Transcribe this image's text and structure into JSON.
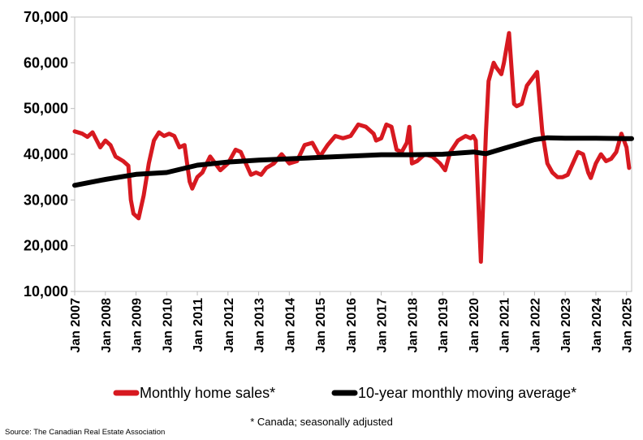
{
  "chart_data": {
    "type": "line",
    "xlabel": "",
    "ylabel": "",
    "ylim": [
      10000,
      70000
    ],
    "yticks": [
      "10,000",
      "20,000",
      "30,000",
      "40,000",
      "50,000",
      "60,000",
      "70,000"
    ],
    "ytick_values": [
      10000,
      20000,
      30000,
      40000,
      50000,
      60000,
      70000
    ],
    "xlim": [
      "2007-01",
      "2025-03"
    ],
    "xticks": [
      "Jan 2007",
      "Jan 2008",
      "Jan 2009",
      "Jan 2010",
      "Jan 2011",
      "Jan 2012",
      "Jan 2013",
      "Jan 2014",
      "Jan 2015",
      "Jan 2016",
      "Jan 2017",
      "Jan 2018",
      "Jan 2019",
      "Jan 2020",
      "Jan 2021",
      "Jan 2022",
      "Jan 2023",
      "Jan 2024",
      "Jan 2025"
    ],
    "grid": "none",
    "legend_position": "bottom",
    "series": [
      {
        "name": "Monthly home sales*",
        "color": "#d71920",
        "points": [
          [
            "2007-01",
            45000
          ],
          [
            "2007-04",
            44500
          ],
          [
            "2007-06",
            43800
          ],
          [
            "2007-08",
            44800
          ],
          [
            "2007-11",
            41500
          ],
          [
            "2008-01",
            43000
          ],
          [
            "2008-03",
            42000
          ],
          [
            "2008-05",
            39500
          ],
          [
            "2008-08",
            38500
          ],
          [
            "2008-10",
            37500
          ],
          [
            "2008-11",
            30000
          ],
          [
            "2008-12",
            27000
          ],
          [
            "2009-02",
            26000
          ],
          [
            "2009-04",
            31000
          ],
          [
            "2009-06",
            38000
          ],
          [
            "2009-08",
            43000
          ],
          [
            "2009-10",
            44800
          ],
          [
            "2009-12",
            44000
          ],
          [
            "2010-02",
            44500
          ],
          [
            "2010-04",
            44000
          ],
          [
            "2010-06",
            41500
          ],
          [
            "2010-08",
            42000
          ],
          [
            "2010-10",
            34000
          ],
          [
            "2010-11",
            32500
          ],
          [
            "2011-01",
            35000
          ],
          [
            "2011-03",
            36000
          ],
          [
            "2011-06",
            39500
          ],
          [
            "2011-08",
            38000
          ],
          [
            "2011-10",
            36500
          ],
          [
            "2012-01",
            38000
          ],
          [
            "2012-04",
            41000
          ],
          [
            "2012-06",
            40500
          ],
          [
            "2012-08",
            38000
          ],
          [
            "2012-10",
            35500
          ],
          [
            "2012-12",
            36000
          ],
          [
            "2013-02",
            35500
          ],
          [
            "2013-04",
            37000
          ],
          [
            "2013-07",
            38000
          ],
          [
            "2013-10",
            40000
          ],
          [
            "2014-01",
            38000
          ],
          [
            "2014-04",
            38500
          ],
          [
            "2014-07",
            42000
          ],
          [
            "2014-10",
            42500
          ],
          [
            "2015-01",
            39500
          ],
          [
            "2015-04",
            42000
          ],
          [
            "2015-07",
            44000
          ],
          [
            "2015-10",
            43500
          ],
          [
            "2016-01",
            44000
          ],
          [
            "2016-04",
            46500
          ],
          [
            "2016-07",
            46000
          ],
          [
            "2016-10",
            44500
          ],
          [
            "2016-11",
            43000
          ],
          [
            "2017-01",
            43500
          ],
          [
            "2017-03",
            46500
          ],
          [
            "2017-05",
            46000
          ],
          [
            "2017-07",
            41000
          ],
          [
            "2017-09",
            40500
          ],
          [
            "2017-11",
            42500
          ],
          [
            "2017-12",
            46000
          ],
          [
            "2018-01",
            38000
          ],
          [
            "2018-03",
            38500
          ],
          [
            "2018-06",
            40000
          ],
          [
            "2018-09",
            39500
          ],
          [
            "2018-12",
            38000
          ],
          [
            "2019-02",
            36500
          ],
          [
            "2019-04",
            40500
          ],
          [
            "2019-07",
            43000
          ],
          [
            "2019-10",
            44000
          ],
          [
            "2019-12",
            43500
          ],
          [
            "2020-01",
            44000
          ],
          [
            "2020-02",
            43000
          ],
          [
            "2020-04",
            16500
          ],
          [
            "2020-06",
            45000
          ],
          [
            "2020-07",
            56000
          ],
          [
            "2020-09",
            60000
          ],
          [
            "2020-10",
            59000
          ],
          [
            "2020-12",
            57500
          ],
          [
            "2021-01",
            60000
          ],
          [
            "2021-03",
            66500
          ],
          [
            "2021-05",
            51000
          ],
          [
            "2021-06",
            50500
          ],
          [
            "2021-08",
            51000
          ],
          [
            "2021-10",
            55000
          ],
          [
            "2021-12",
            56500
          ],
          [
            "2022-02",
            58000
          ],
          [
            "2022-04",
            45000
          ],
          [
            "2022-06",
            38000
          ],
          [
            "2022-08",
            36000
          ],
          [
            "2022-10",
            35000
          ],
          [
            "2022-12",
            35000
          ],
          [
            "2023-02",
            35500
          ],
          [
            "2023-04",
            38000
          ],
          [
            "2023-06",
            40500
          ],
          [
            "2023-08",
            40000
          ],
          [
            "2023-10",
            36000
          ],
          [
            "2023-11",
            34800
          ],
          [
            "2024-01",
            38000
          ],
          [
            "2024-03",
            40000
          ],
          [
            "2024-05",
            38500
          ],
          [
            "2024-07",
            39000
          ],
          [
            "2024-09",
            40500
          ],
          [
            "2024-11",
            44500
          ],
          [
            "2024-12",
            43000
          ],
          [
            "2025-01",
            41500
          ],
          [
            "2025-02",
            37000
          ]
        ]
      },
      {
        "name": "10-year monthly moving average*",
        "color": "#000000",
        "points": [
          [
            "2007-01",
            33200
          ],
          [
            "2008-01",
            34500
          ],
          [
            "2009-01",
            35600
          ],
          [
            "2010-01",
            36000
          ],
          [
            "2011-01",
            37600
          ],
          [
            "2012-01",
            38300
          ],
          [
            "2013-01",
            38700
          ],
          [
            "2014-01",
            39000
          ],
          [
            "2015-01",
            39300
          ],
          [
            "2016-01",
            39600
          ],
          [
            "2017-01",
            39900
          ],
          [
            "2018-01",
            39900
          ],
          [
            "2019-01",
            40000
          ],
          [
            "2020-01",
            40500
          ],
          [
            "2020-06",
            40100
          ],
          [
            "2021-01",
            41300
          ],
          [
            "2022-01",
            43200
          ],
          [
            "2022-06",
            43600
          ],
          [
            "2023-01",
            43500
          ],
          [
            "2024-01",
            43500
          ],
          [
            "2025-01",
            43400
          ],
          [
            "2025-03",
            43400
          ]
        ]
      }
    ]
  },
  "footnote": "* Canada; seasonally adjusted",
  "source": "Source: The Canadian Real Estate Association"
}
